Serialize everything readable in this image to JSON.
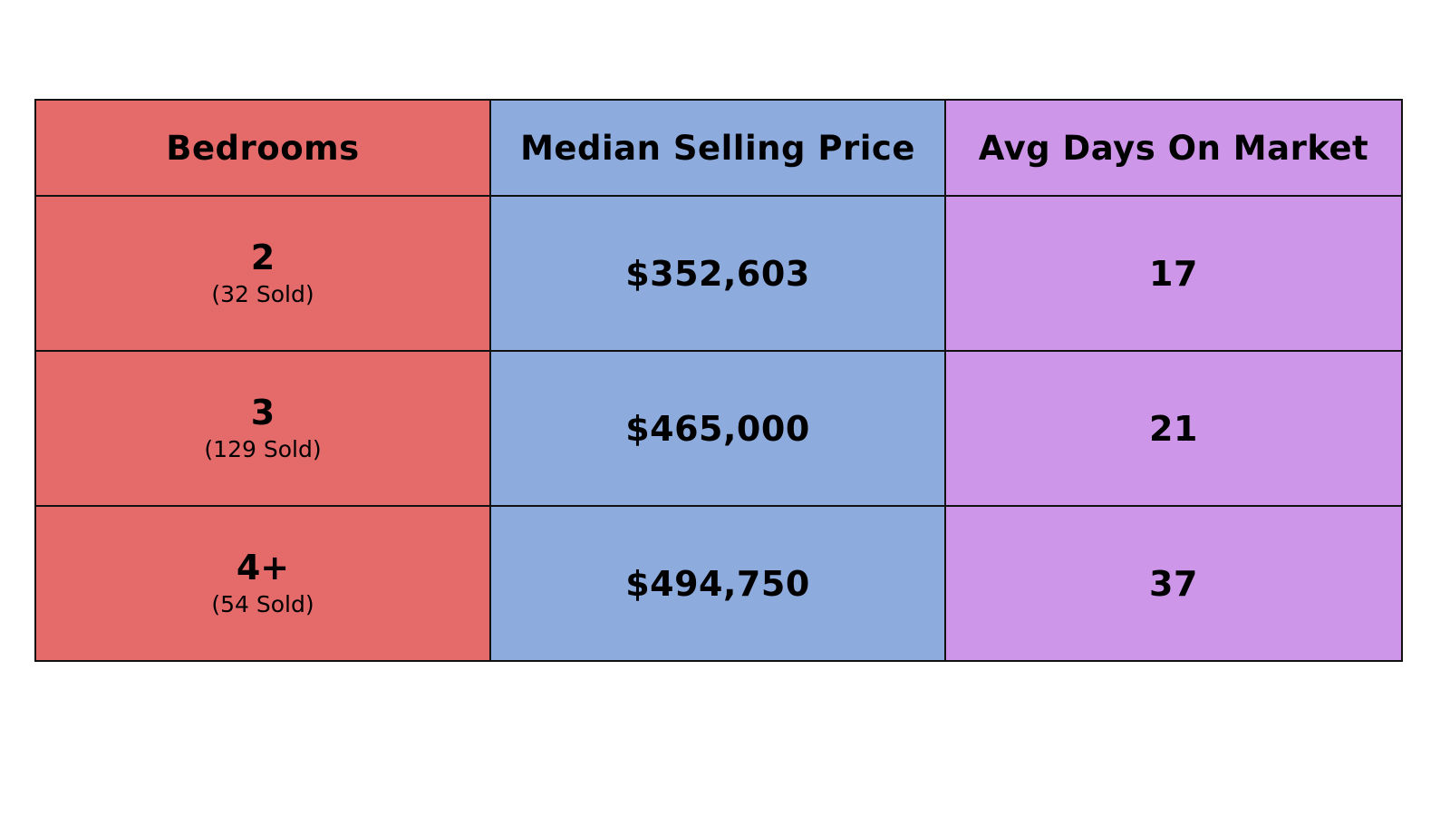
{
  "chart_data": {
    "type": "table",
    "columns": [
      "Bedrooms",
      "Median Selling Price",
      "Avg Days On Market"
    ],
    "column_colors": [
      "#e56b6b",
      "#8eabdd",
      "#cd96e9"
    ],
    "rows": [
      {
        "bedrooms": "2",
        "sold": "(32 Sold)",
        "median_price": "$352,603",
        "avg_days": "17"
      },
      {
        "bedrooms": "3",
        "sold": "(129 Sold)",
        "median_price": "$465,000",
        "avg_days": "21"
      },
      {
        "bedrooms": "4+",
        "sold": "(54 Sold)",
        "median_price": "$494,750",
        "avg_days": "37"
      }
    ]
  }
}
